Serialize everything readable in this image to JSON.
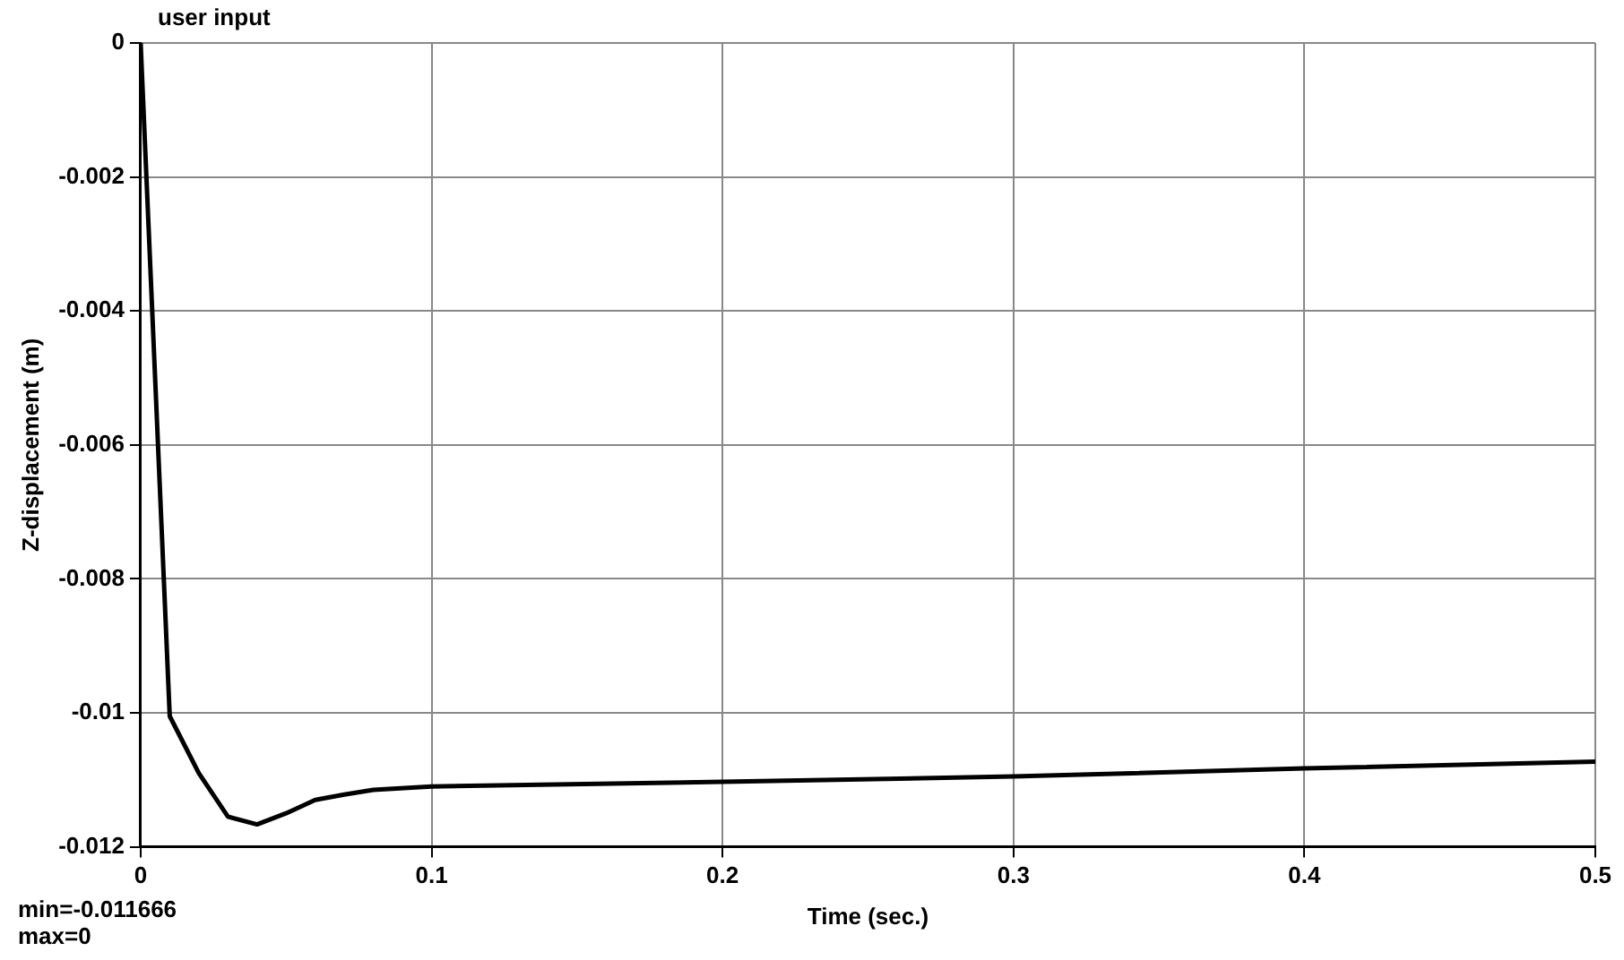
{
  "chart_data": {
    "type": "line",
    "title": "user input",
    "xlabel": "Time (sec.)",
    "ylabel": "Z-displacement (m)",
    "annotations": [
      "min=-0.011666",
      "max=0"
    ],
    "x": [
      0,
      0.01,
      0.02,
      0.03,
      0.04,
      0.05,
      0.06,
      0.07,
      0.08,
      0.1,
      0.2,
      0.3,
      0.4,
      0.5
    ],
    "series": [
      {
        "color": "#000000",
        "values": [
          0,
          -0.01005,
          -0.0109,
          -0.01155,
          -0.011666,
          -0.0115,
          -0.0113,
          -0.01122,
          -0.01115,
          -0.0111,
          -0.01103,
          -0.01095,
          -0.01083,
          -0.01073
        ]
      }
    ],
    "xlim": [
      0,
      0.5
    ],
    "xticks": [
      0,
      0.1,
      0.2,
      0.3,
      0.4,
      0.5
    ],
    "ylim": [
      -0.012,
      0
    ],
    "yticks": [
      -0.012,
      -0.01,
      -0.008,
      -0.006,
      -0.004,
      -0.002,
      0
    ],
    "grid": true,
    "legend": false,
    "marker": "none",
    "line_style": "solid"
  }
}
